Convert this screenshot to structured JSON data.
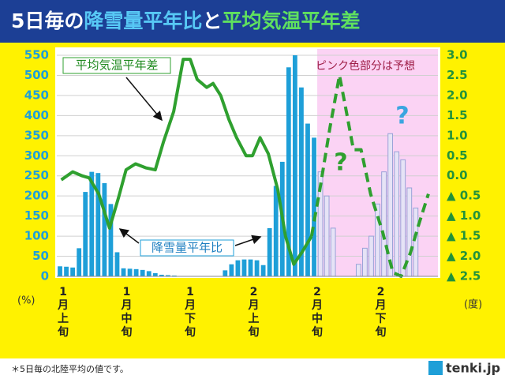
{
  "chart_data": {
    "type": "bar-line",
    "title": [
      "5日毎の",
      "降雪量平年比",
      "と",
      "平均気温平年差"
    ],
    "xlim": [
      0.5,
      60.5
    ],
    "xticks": [
      {
        "value": 1,
        "label": "1月上旬"
      },
      {
        "value": 11,
        "label": "1月中旬"
      },
      {
        "value": 21,
        "label": "1月下旬"
      },
      {
        "value": 31,
        "label": "2月上旬"
      },
      {
        "value": 41,
        "label": "2月中旬"
      },
      {
        "value": 51,
        "label": "2月下旬"
      }
    ],
    "ylim": [
      0,
      550
    ],
    "yticks": [
      0,
      50,
      100,
      150,
      200,
      250,
      300,
      350,
      400,
      450,
      500,
      550
    ],
    "y_unit": "(%)",
    "y2lim": [
      -2.5,
      3.0
    ],
    "y2ticks": [
      {
        "value": 3.0,
        "label": "3.0"
      },
      {
        "value": 2.5,
        "label": "2.5"
      },
      {
        "value": 2.0,
        "label": "2.0"
      },
      {
        "value": 1.5,
        "label": "1.5"
      },
      {
        "value": 1.0,
        "label": "1.0"
      },
      {
        "value": 0.5,
        "label": "0.5"
      },
      {
        "value": 0,
        "label": "0.0"
      },
      {
        "value": -0.5,
        "label": "▲ 0.5"
      },
      {
        "value": -1.0,
        "label": "▲ 1.0"
      },
      {
        "value": -1.5,
        "label": "▲ 1.5"
      },
      {
        "value": -2.0,
        "label": "▲ 2.0"
      },
      {
        "value": -2.5,
        "label": "▲ 2.5"
      }
    ],
    "y2_unit": "(度)",
    "grid": true,
    "forecast_start": 41.5,
    "forecast_label": "ピンク色部分は予想",
    "forecast_color": "#fbd3f4",
    "series": [
      {
        "name": "降雪量平年比",
        "color": "#1e9fd8",
        "forecast_color": "#e6e3f6",
        "x": [
          1,
          2,
          3,
          4,
          5,
          6,
          7,
          8,
          9,
          10,
          11,
          12,
          13,
          14,
          15,
          16,
          17,
          18,
          19,
          20,
          21,
          22,
          23,
          24,
          25,
          26,
          27,
          28,
          29,
          30,
          31,
          32,
          33,
          34,
          35,
          36,
          37,
          38,
          39,
          40,
          41,
          42,
          43,
          44,
          45,
          46,
          47,
          48,
          49,
          50,
          51,
          52,
          53,
          54,
          55,
          56,
          57,
          58,
          59,
          60
        ],
        "values": [
          25,
          24,
          22,
          70,
          210,
          260,
          257,
          232,
          180,
          60,
          20,
          19,
          18,
          16,
          13,
          8,
          4,
          3,
          2,
          null,
          null,
          null,
          null,
          null,
          null,
          null,
          15,
          30,
          40,
          42,
          42,
          40,
          28,
          120,
          225,
          285,
          520,
          550,
          470,
          380,
          345,
          260,
          200,
          120,
          null,
          null,
          null,
          30,
          70,
          100,
          180,
          260,
          355,
          310,
          290,
          220,
          170,
          null,
          null,
          null
        ]
      },
      {
        "name": "平均気温平年差",
        "color": "#2fa02f",
        "axis": "y2",
        "x": [
          1.2,
          3.0,
          4.5,
          5.6,
          7.1,
          8.8,
          10.2,
          11.4,
          12.9,
          14.5,
          16.0,
          17.3,
          18.9,
          20.4,
          21.5,
          22.6,
          24.1,
          25.1,
          26.3,
          27.6,
          28.8,
          30.3,
          31.3,
          32.5,
          33.8,
          35.3,
          36.5,
          37.8,
          39.1,
          40.6,
          41.9,
          43.5,
          45.0,
          46.2,
          47.2,
          48.4,
          49.9,
          51.8,
          53.4,
          54.7,
          56.2,
          57.4,
          59.0
        ],
        "values": [
          -0.1,
          0.1,
          0,
          -0.05,
          -0.45,
          -1.3,
          -0.55,
          0.15,
          0.3,
          0.2,
          0.15,
          0.85,
          1.6,
          2.9,
          2.9,
          2.4,
          2.2,
          2.3,
          2.0,
          1.4,
          0.95,
          0.5,
          0.5,
          0.95,
          0.55,
          -0.35,
          -1.5,
          -2.2,
          -1.9,
          -1.5,
          -0.35,
          1.2,
          2.5,
          1.5,
          0.65,
          0.65,
          -0.45,
          -1.4,
          -2.4,
          -2.5,
          -1.9,
          -1.25,
          -0.45
        ]
      }
    ],
    "marks": [
      "?",
      "?"
    ],
    "footnote": "＊5日毎の北陸平均の値です。",
    "logo": "tenki.jp"
  }
}
